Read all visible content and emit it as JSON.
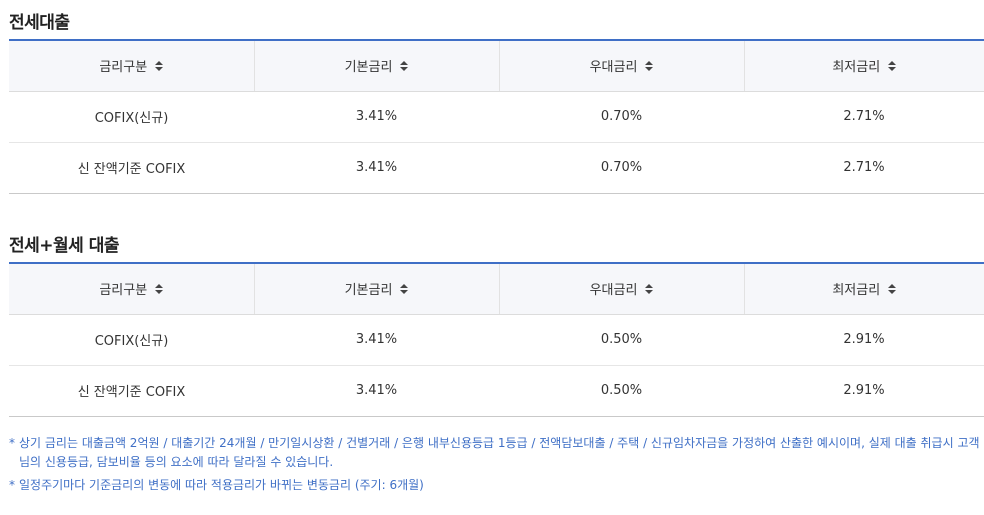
{
  "sections": [
    {
      "title": "전세대출",
      "headers": [
        "금리구분",
        "기본금리",
        "우대금리",
        "최저금리"
      ],
      "rows": [
        [
          "COFIX(신규)",
          "3.41%",
          "0.70%",
          "2.71%"
        ],
        [
          "신 잔액기준 COFIX",
          "3.41%",
          "0.70%",
          "2.71%"
        ]
      ]
    },
    {
      "title": "전세+월세 대출",
      "headers": [
        "금리구분",
        "기본금리",
        "우대금리",
        "최저금리"
      ],
      "rows": [
        [
          "COFIX(신규)",
          "3.41%",
          "0.50%",
          "2.91%"
        ],
        [
          "신 잔액기준 COFIX",
          "3.41%",
          "0.50%",
          "2.91%"
        ]
      ]
    }
  ],
  "notes": [
    {
      "bullet": "*",
      "text": "상기 금리는 대출금액 2억원 / 대출기간 24개월 / 만기일시상환 / 건별거래 / 은행 내부신용등급 1등급 / 전액담보대출 / 주택 / 신규임차자금을 가정하여 산출한 예시이며, 실제 대출 취급시 고객님의 신용등급, 담보비율 등의 요소에 따라 달라질 수 있습니다."
    },
    {
      "bullet": "*",
      "text": "일정주기마다 기준금리의 변동에 따라 적용금리가 바뀌는 변동금리 (주기: 6개월)"
    }
  ],
  "colors": {
    "accent": "#3f6fc6",
    "header_bg": "#f6f7fa",
    "text": "#333333"
  },
  "icons": {
    "sort": "sort-updown-icon"
  }
}
